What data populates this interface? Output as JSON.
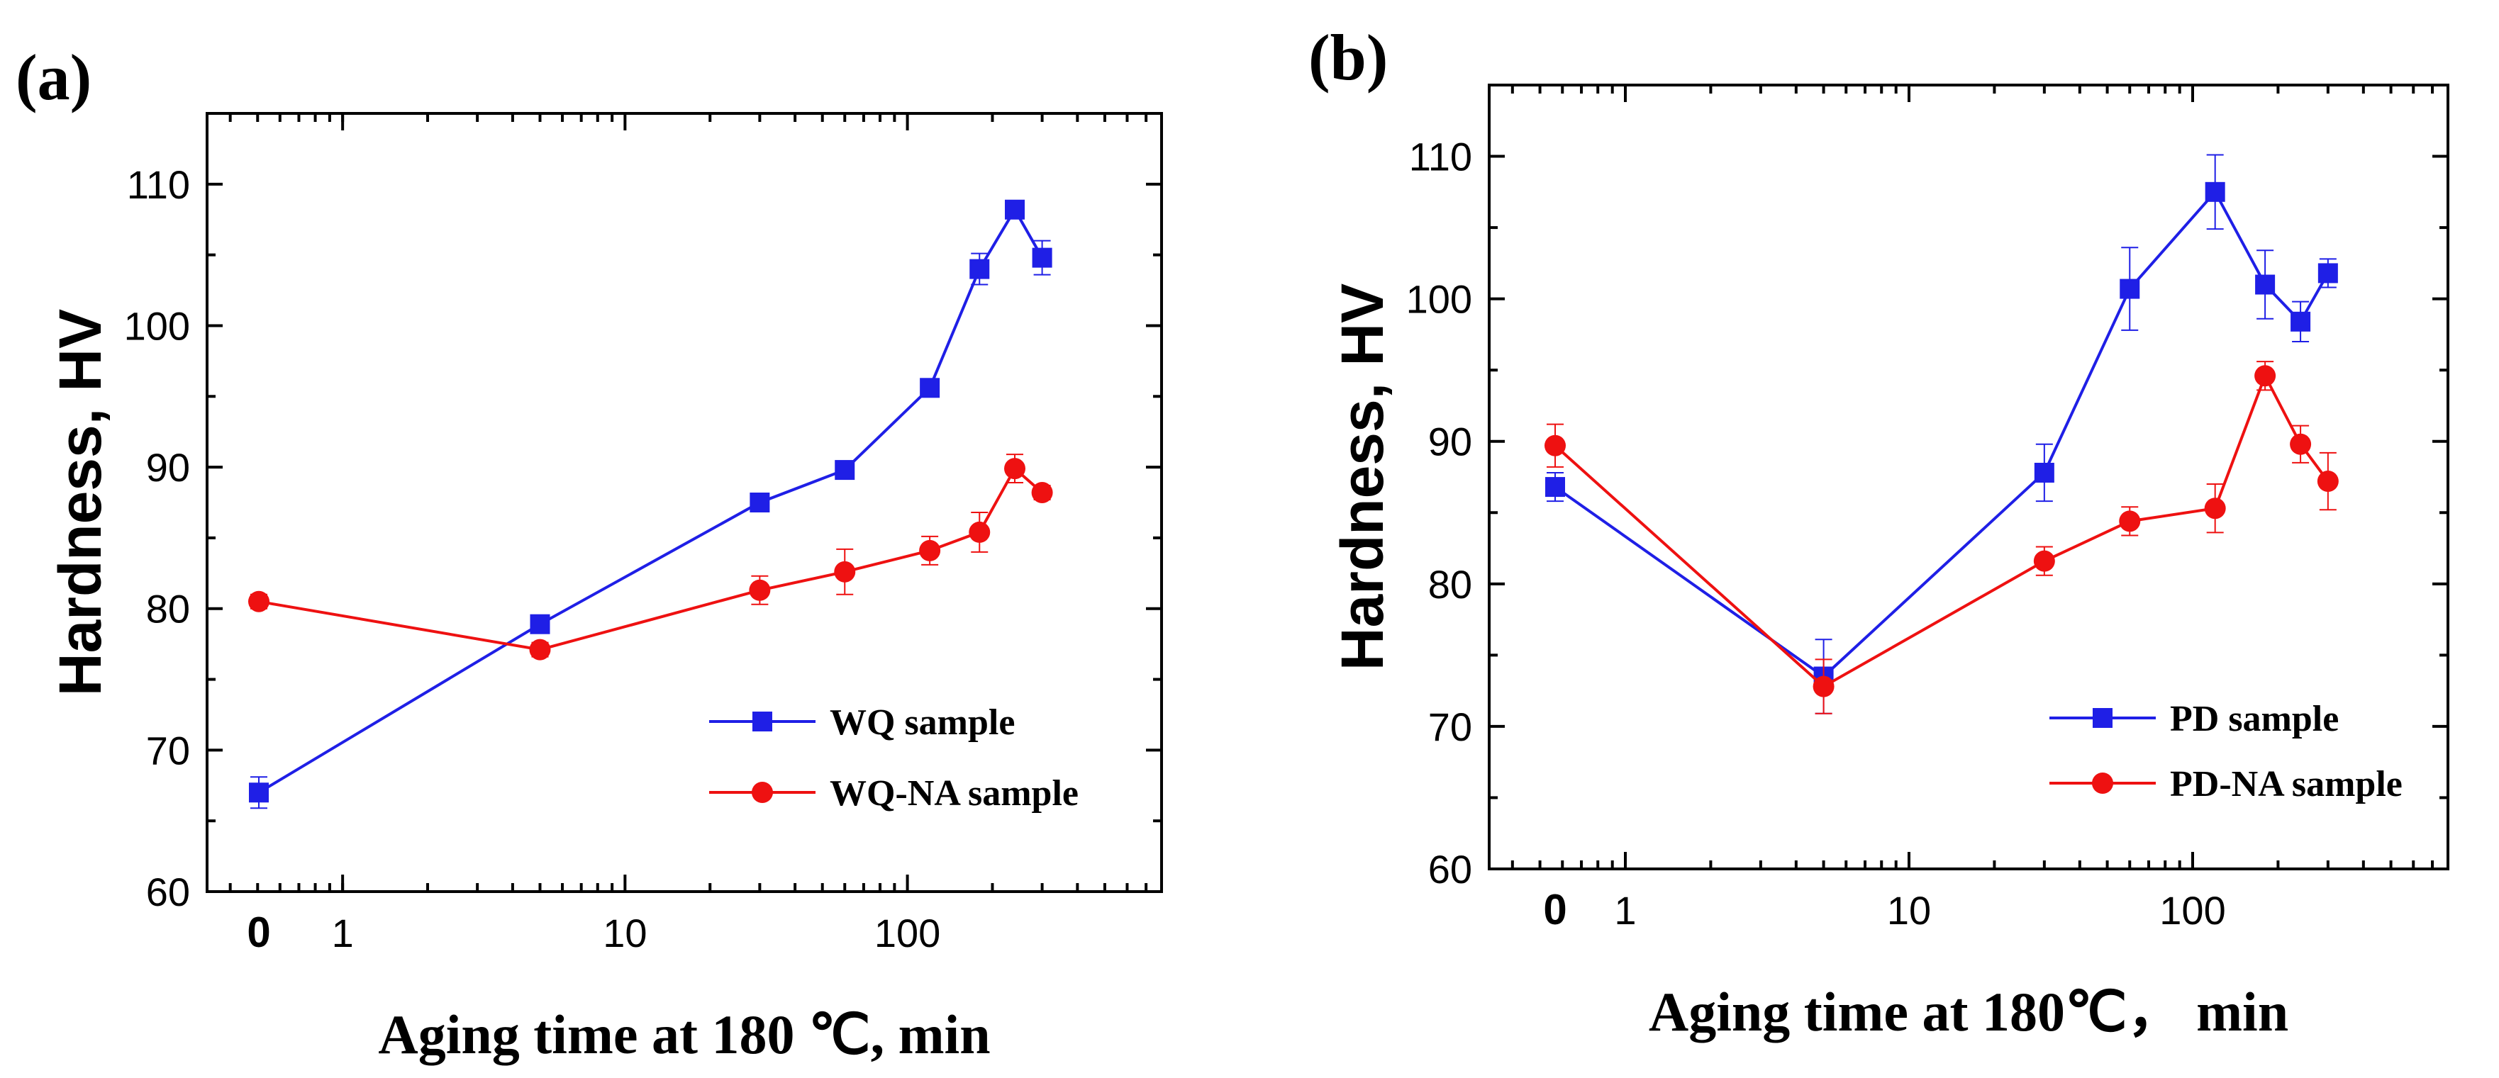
{
  "chart_data": [
    {
      "type": "line",
      "panel_label": "(a)",
      "xlabel": "Aging time at 180 ℃, min",
      "ylabel": "Hardness, HV",
      "xscale": "log",
      "x_tick_labels": [
        "0",
        "1",
        "10",
        "100"
      ],
      "ylim": [
        60,
        115
      ],
      "y_ticks": [
        60,
        70,
        80,
        90,
        100,
        110
      ],
      "legend_position": "lower-right",
      "series": [
        {
          "name": "WQ sample",
          "color": "#1f1fe6",
          "marker": "square",
          "x": [
            0,
            5,
            30,
            60,
            120,
            180,
            240,
            300
          ],
          "y": [
            67.0,
            78.9,
            87.5,
            89.8,
            95.6,
            104.0,
            108.2,
            104.8
          ],
          "err": [
            1.1,
            0.6,
            0.6,
            0.6,
            0.6,
            1.1,
            0.6,
            1.2
          ]
        },
        {
          "name": "WQ-NA sample",
          "color": "#ee1111",
          "marker": "circle",
          "x": [
            0,
            5,
            30,
            60,
            120,
            180,
            240,
            300
          ],
          "y": [
            80.5,
            77.1,
            81.3,
            82.6,
            84.1,
            85.4,
            89.9,
            88.2
          ],
          "err": [
            0.5,
            0.5,
            1.0,
            1.6,
            1.0,
            1.4,
            1.0,
            0.5
          ]
        }
      ]
    },
    {
      "type": "line",
      "panel_label": "(b)",
      "xlabel": "Aging time at 180℃， min",
      "ylabel": "Hardness, HV",
      "xscale": "log",
      "x_tick_labels": [
        "0",
        "1",
        "10",
        "100"
      ],
      "ylim": [
        60,
        115
      ],
      "y_ticks": [
        60,
        70,
        80,
        90,
        100,
        110
      ],
      "legend_position": "lower-right",
      "series": [
        {
          "name": "PD sample",
          "color": "#1f1fe6",
          "marker": "square",
          "x": [
            0,
            5,
            30,
            60,
            120,
            180,
            240,
            300
          ],
          "y": [
            86.8,
            73.5,
            87.8,
            100.7,
            107.5,
            101.0,
            98.4,
            101.8
          ],
          "err": [
            1.0,
            2.6,
            2.0,
            2.9,
            2.6,
            2.4,
            1.4,
            1.0
          ]
        },
        {
          "name": "PD-NA sample",
          "color": "#ee1111",
          "marker": "circle",
          "x": [
            0,
            5,
            30,
            60,
            120,
            180,
            240,
            300
          ],
          "y": [
            89.7,
            72.8,
            81.6,
            84.4,
            85.3,
            94.6,
            89.8,
            87.2
          ],
          "err": [
            1.5,
            1.9,
            1.0,
            1.0,
            1.7,
            1.0,
            1.3,
            2.0
          ]
        }
      ]
    }
  ]
}
